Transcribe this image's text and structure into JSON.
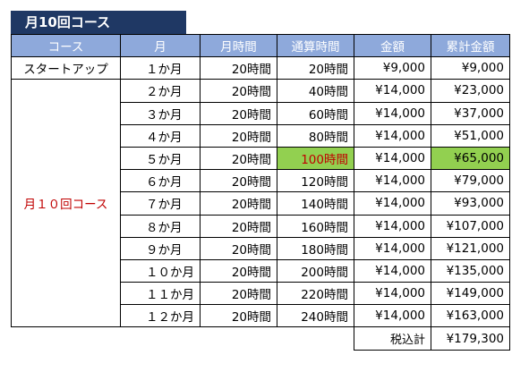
{
  "title": "月10回コース",
  "headers": [
    "コース",
    "月",
    "月時間",
    "通算時間",
    "金額",
    "累計金額"
  ],
  "first_row": {
    "course": "スタートアップ",
    "month": "１か月",
    "hours": "20時間",
    "total_hours": "20時間",
    "amount": "¥9,000",
    "cumulative": "¥9,000"
  },
  "course_name": "月１０回コース",
  "rows": [
    {
      "month": "２か月",
      "hours": "20時間",
      "total_hours": "40時間",
      "amount": "¥14,000",
      "cumulative": "¥23,000"
    },
    {
      "month": "３か月",
      "hours": "20時間",
      "total_hours": "60時間",
      "amount": "¥14,000",
      "cumulative": "¥37,000"
    },
    {
      "month": "４か月",
      "hours": "20時間",
      "total_hours": "80時間",
      "amount": "¥14,000",
      "cumulative": "¥51,000"
    },
    {
      "month": "５か月",
      "hours": "20時間",
      "total_hours": "100時間",
      "amount": "¥14,000",
      "cumulative": "¥65,000",
      "highlight": true
    },
    {
      "month": "６か月",
      "hours": "20時間",
      "total_hours": "120時間",
      "amount": "¥14,000",
      "cumulative": "¥79,000"
    },
    {
      "month": "７か月",
      "hours": "20時間",
      "total_hours": "140時間",
      "amount": "¥14,000",
      "cumulative": "¥93,000"
    },
    {
      "month": "８か月",
      "hours": "20時間",
      "total_hours": "160時間",
      "amount": "¥14,000",
      "cumulative": "¥107,000"
    },
    {
      "month": "９か月",
      "hours": "20時間",
      "total_hours": "180時間",
      "amount": "¥14,000",
      "cumulative": "¥121,000"
    },
    {
      "month": "１０か月",
      "hours": "20時間",
      "total_hours": "200時間",
      "amount": "¥14,000",
      "cumulative": "¥135,000"
    },
    {
      "month": "１１か月",
      "hours": "20時間",
      "total_hours": "220時間",
      "amount": "¥14,000",
      "cumulative": "¥149,000"
    },
    {
      "month": "１２か月",
      "hours": "20時間",
      "total_hours": "240時間",
      "amount": "¥14,000",
      "cumulative": "¥163,000"
    }
  ],
  "tax_label": "税込計",
  "tax_total": "¥179,300",
  "colors": {
    "title_bg": "#1f3864",
    "header_bg": "#8ea9db",
    "highlight": "#92d050",
    "course_text": "#c00000"
  }
}
